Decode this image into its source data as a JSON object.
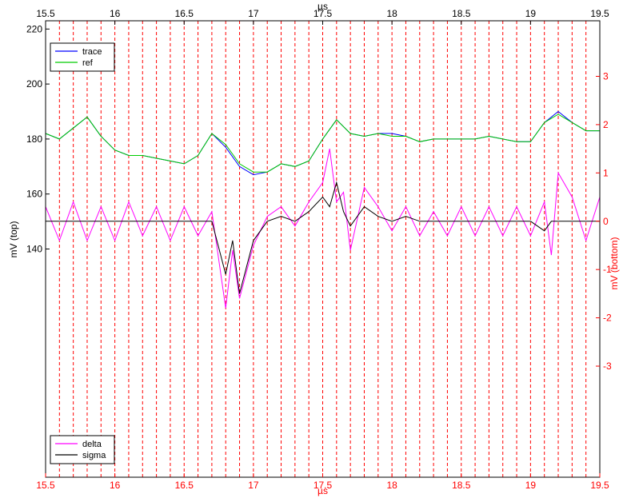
{
  "chart_data": {
    "type": "line",
    "colors": {
      "trace": "#0000ff",
      "ref": "#00cc00",
      "delta": "#ff00ff",
      "sigma": "#000000",
      "grid": "#ff0000",
      "bottom_axis": "#ff0000"
    },
    "x_axis_top": {
      "label": "µs",
      "range": [
        15.5,
        19.5
      ],
      "ticks": [
        "15.5",
        "16",
        "16.5",
        "17",
        "17.5",
        "18",
        "18.5",
        "19",
        "19.5"
      ]
    },
    "x_axis_bottom": {
      "label": "µs",
      "range": [
        15.5,
        19.5
      ],
      "ticks": [
        "15.5",
        "16",
        "16.5",
        "17",
        "17.5",
        "18",
        "18.5",
        "19",
        "19.5"
      ]
    },
    "y_axis_left": {
      "label": "mV (top)",
      "range": [
        57,
        223
      ],
      "ticks": [
        "140",
        "160",
        "180",
        "200",
        "220"
      ]
    },
    "y_axis_right": {
      "label": "mV (bottom)",
      "range": [
        -5.3,
        4.15
      ],
      "ticks": [
        "-3",
        "-2",
        "-1",
        "0",
        "1",
        "2",
        "3"
      ]
    },
    "grid": {
      "vertical_dashed_red": true,
      "start": 15.6,
      "step": 0.1,
      "end": 19.45
    },
    "legend_top": {
      "placement": "top-left",
      "items": [
        "trace",
        "ref"
      ]
    },
    "legend_bottom": {
      "placement": "bottom-left",
      "items": [
        "delta",
        "sigma"
      ]
    },
    "series_top": {
      "x": [
        15.5,
        15.6,
        15.7,
        15.8,
        15.9,
        16.0,
        16.1,
        16.2,
        16.3,
        16.4,
        16.5,
        16.6,
        16.7,
        16.8,
        16.9,
        17.0,
        17.1,
        17.2,
        17.3,
        17.4,
        17.5,
        17.6,
        17.7,
        17.8,
        17.9,
        18.0,
        18.1,
        18.2,
        18.3,
        18.4,
        18.5,
        18.6,
        18.7,
        18.8,
        18.9,
        19.0,
        19.1,
        19.2,
        19.3,
        19.4,
        19.5
      ],
      "trace": [
        182,
        180,
        184,
        188,
        181,
        176,
        174,
        174,
        173,
        172,
        171,
        174,
        182,
        177,
        170,
        167,
        168,
        171,
        170,
        172,
        180,
        187,
        182,
        181,
        182,
        182,
        181,
        179,
        180,
        180,
        180,
        180,
        181,
        180,
        179,
        179,
        186,
        190,
        186,
        183,
        183
      ],
      "ref": [
        182,
        180,
        184,
        188,
        181,
        176,
        174,
        174,
        173,
        172,
        171,
        174,
        182,
        178,
        171,
        168,
        168,
        171,
        170,
        172,
        180,
        187,
        182,
        181,
        182,
        181,
        181,
        179,
        180,
        180,
        180,
        180,
        181,
        180,
        179,
        179,
        186,
        189,
        186,
        183,
        183
      ]
    },
    "series_bottom": {
      "x": [
        15.5,
        15.6,
        15.7,
        15.8,
        15.9,
        16.0,
        16.1,
        16.2,
        16.3,
        16.4,
        16.5,
        16.6,
        16.7,
        16.8,
        16.85,
        16.9,
        17.0,
        17.1,
        17.2,
        17.3,
        17.4,
        17.5,
        17.55,
        17.6,
        17.65,
        17.7,
        17.8,
        17.9,
        18.0,
        18.1,
        18.2,
        18.3,
        18.4,
        18.5,
        18.6,
        18.7,
        18.8,
        18.9,
        19.0,
        19.1,
        19.15,
        19.2,
        19.3,
        19.4,
        19.5
      ],
      "delta": [
        0.3,
        -0.4,
        0.4,
        -0.4,
        0.3,
        -0.4,
        0.4,
        -0.3,
        0.3,
        -0.4,
        0.3,
        -0.3,
        0.2,
        -1.8,
        -0.6,
        -1.6,
        -0.5,
        0.1,
        0.3,
        -0.1,
        0.4,
        0.8,
        1.5,
        0.4,
        0.6,
        -0.6,
        0.7,
        0.3,
        -0.2,
        0.3,
        -0.3,
        0.2,
        -0.3,
        0.3,
        -0.3,
        0.3,
        -0.3,
        0.3,
        -0.3,
        0.4,
        -0.7,
        1.0,
        0.5,
        -0.4,
        0.5
      ],
      "sigma": [
        0,
        0,
        0,
        0,
        0,
        0,
        0,
        0,
        0,
        0,
        0,
        0,
        0,
        -1.1,
        -0.4,
        -1.5,
        -0.4,
        0,
        0.1,
        0,
        0.2,
        0.5,
        0.3,
        0.8,
        0.2,
        -0.1,
        0.3,
        0.1,
        0,
        0.1,
        0,
        0,
        0,
        0,
        0,
        0,
        0,
        0,
        0,
        -0.2,
        0,
        0,
        0,
        0,
        0
      ]
    }
  }
}
